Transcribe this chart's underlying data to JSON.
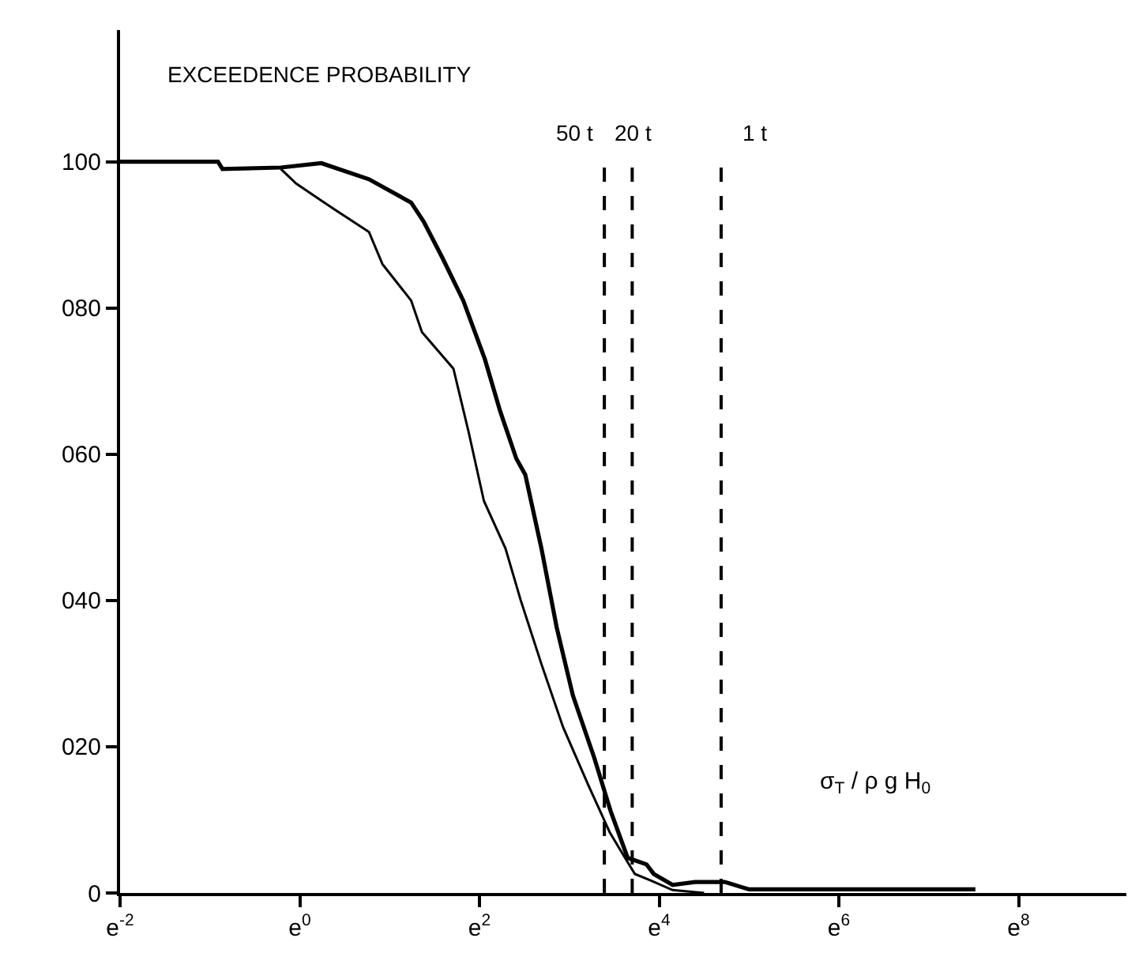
{
  "chart_data": {
    "type": "line",
    "xlabel": "σ$_{T}$ / ρ g H$_{0}$",
    "ylabel": "EXCEEDENCE PROBABILITY",
    "xlim": [
      -2,
      9.2
    ],
    "ylim": [
      0,
      118
    ],
    "xticks": [
      {
        "value": -2,
        "label": "e$^{-2}$"
      },
      {
        "value": 0,
        "label": "e$^{0}$"
      },
      {
        "value": 2,
        "label": "e$^{2}$"
      },
      {
        "value": 4,
        "label": "e$^{4}$"
      },
      {
        "value": 6,
        "label": "e$^{6}$"
      },
      {
        "value": 8,
        "label": "e$^{8}$"
      }
    ],
    "yticks": [
      0,
      {
        "value": 20,
        "label": "020"
      },
      {
        "value": 40,
        "label": "040"
      },
      {
        "value": 60,
        "label": "060"
      },
      {
        "value": 80,
        "label": "080"
      },
      100
    ],
    "marker": "none",
    "line_style": "solid",
    "series": [
      {
        "color": "#000000",
        "x": [
          -2,
          -0.91,
          -0.86,
          -0.21,
          0.24,
          0.77,
          1.24,
          1.38,
          1.59,
          1.82,
          2.06,
          2.23,
          2.41,
          2.51,
          2.69,
          2.86,
          3.04,
          3.28,
          3.46,
          3.65,
          3.86,
          3.94,
          4.15,
          4.4,
          4.73,
          5.0,
          6.0,
          7.0,
          7.52
        ],
        "values": [
          100,
          100,
          99,
          99.2,
          99.8,
          97.6,
          94.4,
          91.8,
          86.8,
          81,
          73,
          65.9,
          59.4,
          57.2,
          47.1,
          36.3,
          27,
          18.4,
          11.2,
          4.8,
          3.9,
          2.6,
          1.1,
          1.5,
          1.5,
          0.5,
          0.5,
          0.5,
          0.5
        ]
      },
      {
        "color": "#000000",
        "x": [
          -0.21,
          -0.04,
          0.37,
          0.77,
          0.92,
          1.24,
          1.36,
          1.71,
          1.88,
          2.05,
          2.29,
          2.46,
          2.69,
          2.93,
          3.21,
          3.45,
          3.62,
          3.73,
          3.91,
          4.15,
          4.5
        ],
        "values": [
          99,
          97,
          93.6,
          90.4,
          86,
          81,
          76.7,
          71.7,
          63,
          53.6,
          47.1,
          40,
          31.3,
          22.7,
          14.8,
          8.3,
          4.8,
          2.6,
          1.7,
          0.4,
          0
        ]
      }
    ],
    "ref_lines": [
      {
        "axis": "x",
        "value": 3.39,
        "label": "50 t",
        "line_style": "dashed"
      },
      {
        "axis": "x",
        "value": 3.7,
        "label": "20 t",
        "line_style": "dashed"
      },
      {
        "axis": "x",
        "value": 4.69,
        "label": "1 t",
        "line_style": "dashed"
      }
    ]
  }
}
